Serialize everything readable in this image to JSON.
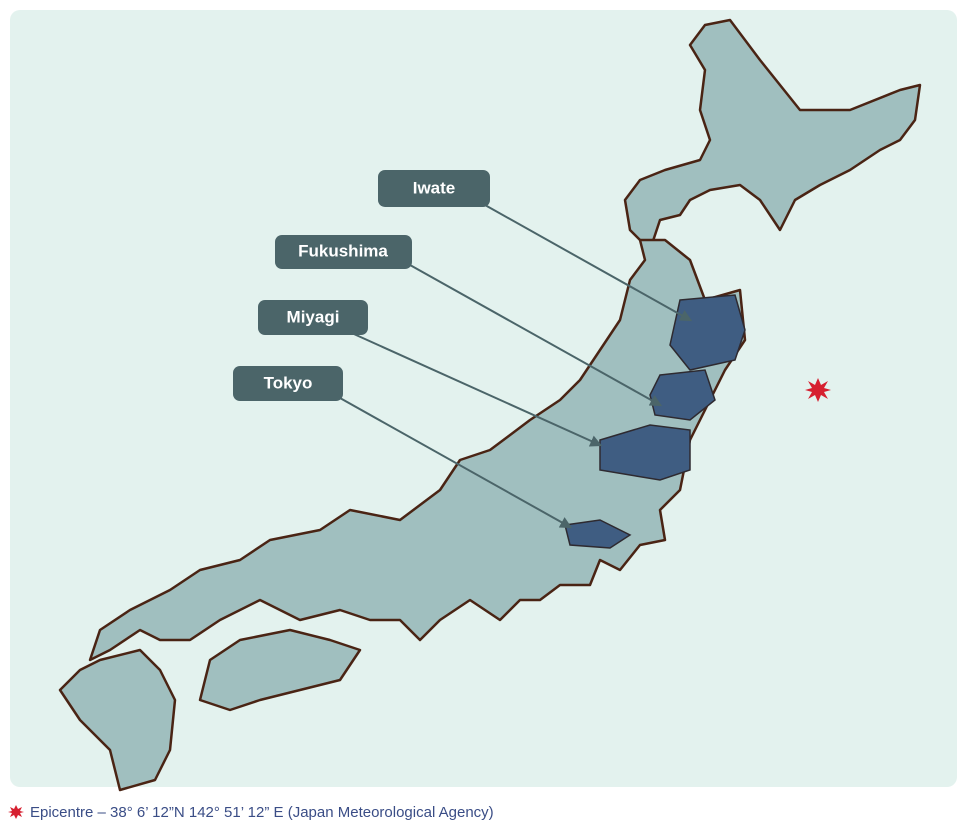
{
  "labels": [
    "Iwate",
    "Fukushima",
    "Miyagi",
    "Tokyo"
  ],
  "caption": "Epicentre  – 38° 6’ 12”N 142° 51’ 12” E (Japan Meteorological Agency)"
}
